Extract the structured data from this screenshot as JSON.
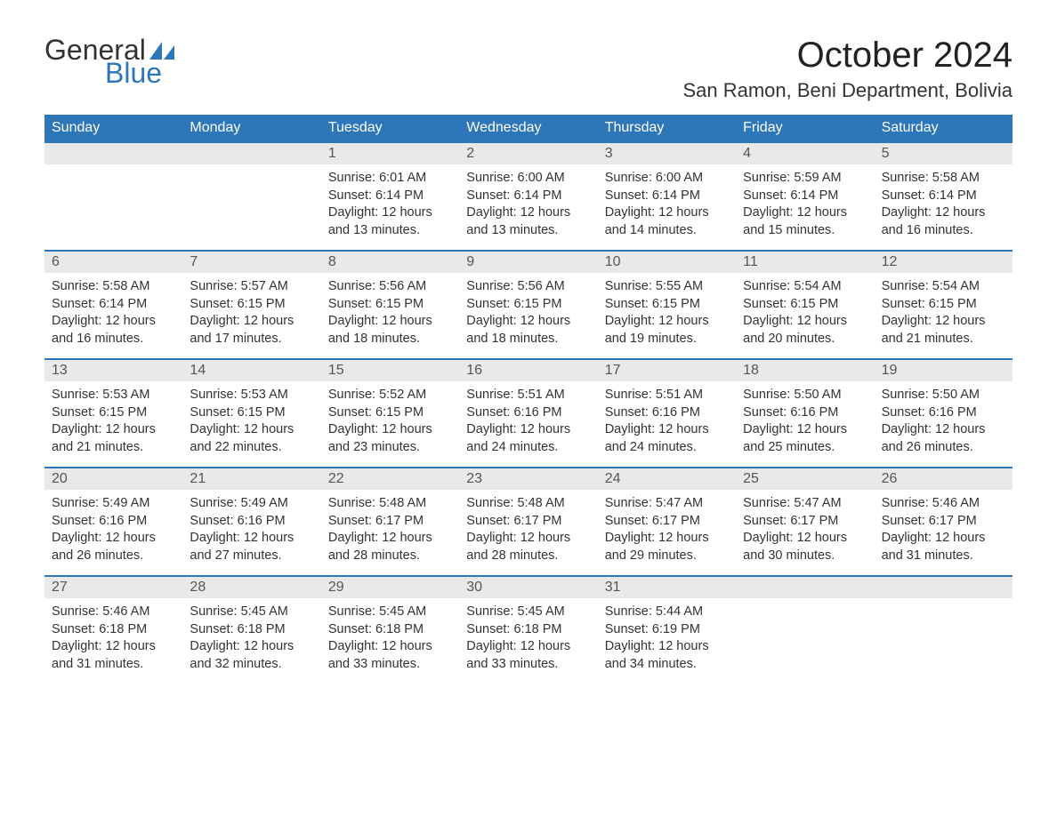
{
  "logo": {
    "text1": "General",
    "text2": "Blue",
    "sail_color": "#2d76b8"
  },
  "title": "October 2024",
  "location": "San Ramon, Beni Department, Bolivia",
  "colors": {
    "header_bg": "#2d76b8",
    "header_text": "#ffffff",
    "daynum_bg": "#e9e9e9",
    "text": "#333333",
    "bg": "#ffffff",
    "week_border": "#2d76b8"
  },
  "typography": {
    "title_fontsize": 40,
    "location_fontsize": 22,
    "dayhead_fontsize": 16,
    "body_fontsize": 14.5
  },
  "layout": {
    "columns": 7,
    "rows": 5
  },
  "day_headers": [
    "Sunday",
    "Monday",
    "Tuesday",
    "Wednesday",
    "Thursday",
    "Friday",
    "Saturday"
  ],
  "labels": {
    "sunrise": "Sunrise:",
    "sunset": "Sunset:",
    "daylight": "Daylight:"
  },
  "weeks": [
    [
      {
        "n": "",
        "empty": true
      },
      {
        "n": "",
        "empty": true
      },
      {
        "n": "1",
        "sunrise": "6:01 AM",
        "sunset": "6:14 PM",
        "daylight": "12 hours and 13 minutes."
      },
      {
        "n": "2",
        "sunrise": "6:00 AM",
        "sunset": "6:14 PM",
        "daylight": "12 hours and 13 minutes."
      },
      {
        "n": "3",
        "sunrise": "6:00 AM",
        "sunset": "6:14 PM",
        "daylight": "12 hours and 14 minutes."
      },
      {
        "n": "4",
        "sunrise": "5:59 AM",
        "sunset": "6:14 PM",
        "daylight": "12 hours and 15 minutes."
      },
      {
        "n": "5",
        "sunrise": "5:58 AM",
        "sunset": "6:14 PM",
        "daylight": "12 hours and 16 minutes."
      }
    ],
    [
      {
        "n": "6",
        "sunrise": "5:58 AM",
        "sunset": "6:14 PM",
        "daylight": "12 hours and 16 minutes."
      },
      {
        "n": "7",
        "sunrise": "5:57 AM",
        "sunset": "6:15 PM",
        "daylight": "12 hours and 17 minutes."
      },
      {
        "n": "8",
        "sunrise": "5:56 AM",
        "sunset": "6:15 PM",
        "daylight": "12 hours and 18 minutes."
      },
      {
        "n": "9",
        "sunrise": "5:56 AM",
        "sunset": "6:15 PM",
        "daylight": "12 hours and 18 minutes."
      },
      {
        "n": "10",
        "sunrise": "5:55 AM",
        "sunset": "6:15 PM",
        "daylight": "12 hours and 19 minutes."
      },
      {
        "n": "11",
        "sunrise": "5:54 AM",
        "sunset": "6:15 PM",
        "daylight": "12 hours and 20 minutes."
      },
      {
        "n": "12",
        "sunrise": "5:54 AM",
        "sunset": "6:15 PM",
        "daylight": "12 hours and 21 minutes."
      }
    ],
    [
      {
        "n": "13",
        "sunrise": "5:53 AM",
        "sunset": "6:15 PM",
        "daylight": "12 hours and 21 minutes."
      },
      {
        "n": "14",
        "sunrise": "5:53 AM",
        "sunset": "6:15 PM",
        "daylight": "12 hours and 22 minutes."
      },
      {
        "n": "15",
        "sunrise": "5:52 AM",
        "sunset": "6:15 PM",
        "daylight": "12 hours and 23 minutes."
      },
      {
        "n": "16",
        "sunrise": "5:51 AM",
        "sunset": "6:16 PM",
        "daylight": "12 hours and 24 minutes."
      },
      {
        "n": "17",
        "sunrise": "5:51 AM",
        "sunset": "6:16 PM",
        "daylight": "12 hours and 24 minutes."
      },
      {
        "n": "18",
        "sunrise": "5:50 AM",
        "sunset": "6:16 PM",
        "daylight": "12 hours and 25 minutes."
      },
      {
        "n": "19",
        "sunrise": "5:50 AM",
        "sunset": "6:16 PM",
        "daylight": "12 hours and 26 minutes."
      }
    ],
    [
      {
        "n": "20",
        "sunrise": "5:49 AM",
        "sunset": "6:16 PM",
        "daylight": "12 hours and 26 minutes."
      },
      {
        "n": "21",
        "sunrise": "5:49 AM",
        "sunset": "6:16 PM",
        "daylight": "12 hours and 27 minutes."
      },
      {
        "n": "22",
        "sunrise": "5:48 AM",
        "sunset": "6:17 PM",
        "daylight": "12 hours and 28 minutes."
      },
      {
        "n": "23",
        "sunrise": "5:48 AM",
        "sunset": "6:17 PM",
        "daylight": "12 hours and 28 minutes."
      },
      {
        "n": "24",
        "sunrise": "5:47 AM",
        "sunset": "6:17 PM",
        "daylight": "12 hours and 29 minutes."
      },
      {
        "n": "25",
        "sunrise": "5:47 AM",
        "sunset": "6:17 PM",
        "daylight": "12 hours and 30 minutes."
      },
      {
        "n": "26",
        "sunrise": "5:46 AM",
        "sunset": "6:17 PM",
        "daylight": "12 hours and 31 minutes."
      }
    ],
    [
      {
        "n": "27",
        "sunrise": "5:46 AM",
        "sunset": "6:18 PM",
        "daylight": "12 hours and 31 minutes."
      },
      {
        "n": "28",
        "sunrise": "5:45 AM",
        "sunset": "6:18 PM",
        "daylight": "12 hours and 32 minutes."
      },
      {
        "n": "29",
        "sunrise": "5:45 AM",
        "sunset": "6:18 PM",
        "daylight": "12 hours and 33 minutes."
      },
      {
        "n": "30",
        "sunrise": "5:45 AM",
        "sunset": "6:18 PM",
        "daylight": "12 hours and 33 minutes."
      },
      {
        "n": "31",
        "sunrise": "5:44 AM",
        "sunset": "6:19 PM",
        "daylight": "12 hours and 34 minutes."
      },
      {
        "n": "",
        "empty": true
      },
      {
        "n": "",
        "empty": true
      }
    ]
  ]
}
